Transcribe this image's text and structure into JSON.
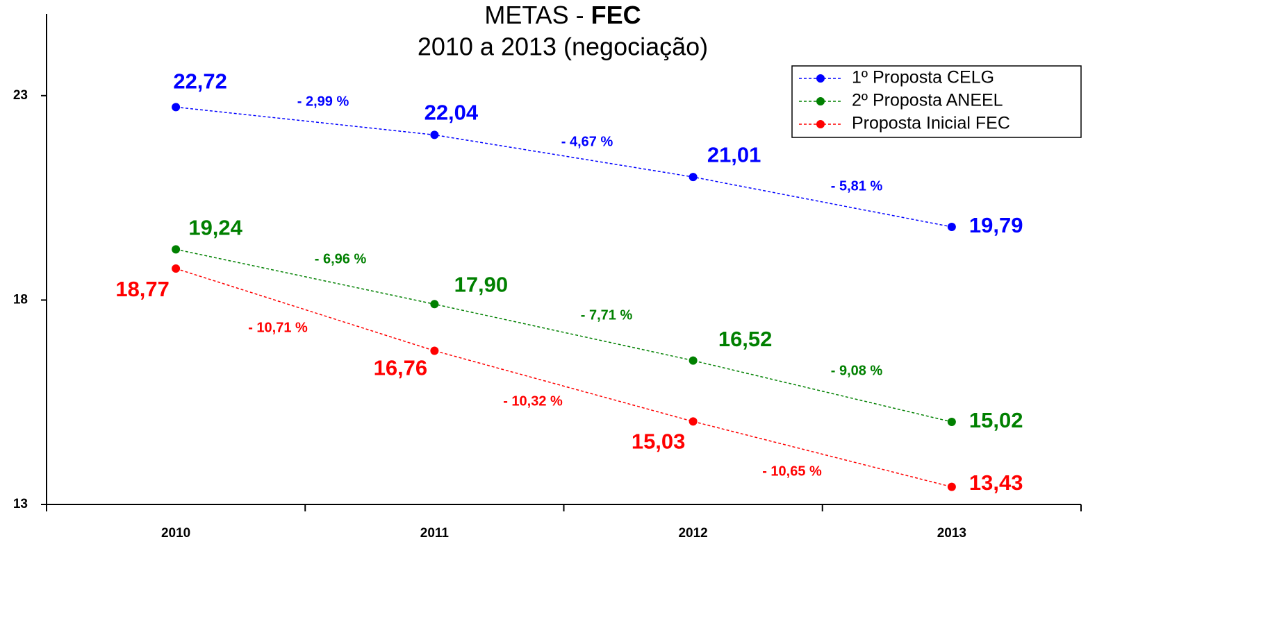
{
  "chart_data": {
    "type": "line",
    "title": "METAS - FEC",
    "subtitle": "2010 a 2013 (negociação)",
    "categories": [
      "2010",
      "2011",
      "2012",
      "2013"
    ],
    "series": [
      {
        "name": "1º Proposta CELG",
        "color": "#0000ff",
        "values": [
          22.72,
          22.04,
          21.01,
          19.79
        ],
        "value_labels": [
          "22,72",
          "22,04",
          "21,01",
          "19,79"
        ],
        "change_labels": [
          "- 2,99 %",
          "- 4,67 %",
          "- 5,81 %"
        ]
      },
      {
        "name": "2º Proposta ANEEL",
        "color": "#008000",
        "values": [
          19.24,
          17.9,
          16.52,
          15.02
        ],
        "value_labels": [
          "19,24",
          "17,90",
          "16,52",
          "15,02"
        ],
        "change_labels": [
          "- 6,96 %",
          "- 7,71 %",
          "- 9,08 %"
        ]
      },
      {
        "name": "Proposta Inicial FEC",
        "color": "#ff0000",
        "values": [
          18.77,
          16.76,
          15.03,
          13.43
        ],
        "value_labels": [
          "18,77",
          "16,76",
          "15,03",
          "13,43"
        ],
        "change_labels": [
          "- 10,71 %",
          "- 10,32 %",
          "- 10,65 %"
        ]
      }
    ],
    "ylim": [
      13,
      25
    ],
    "yticks": [
      13,
      18,
      23
    ],
    "legend": "top-right"
  }
}
